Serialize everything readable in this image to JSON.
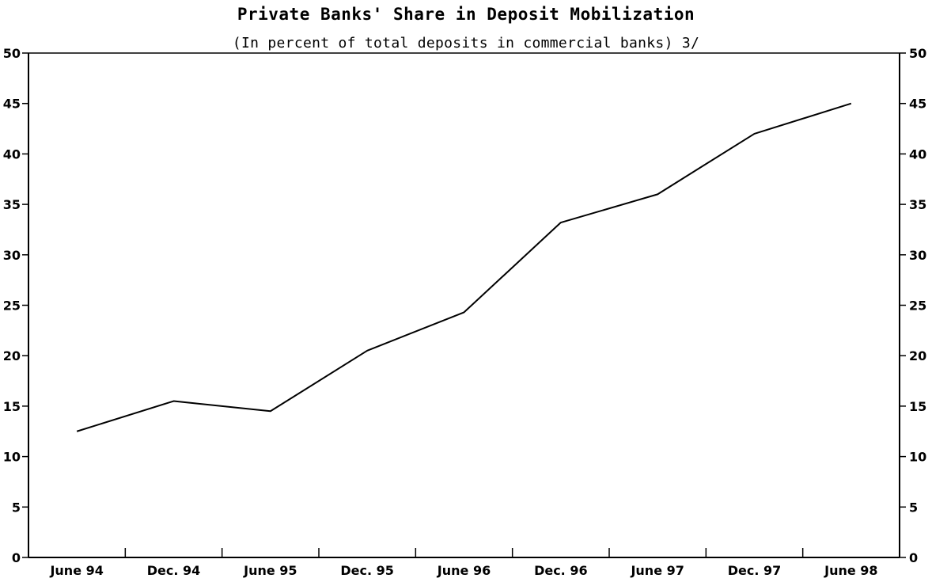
{
  "chart_data": {
    "type": "line",
    "title": "Private Banks' Share in Deposit Mobilization",
    "subtitle": "(In percent of total deposits in commercial banks) 3/",
    "xlabel": "",
    "ylabel": "",
    "categories": [
      "June 94",
      "Dec. 94",
      "June 95",
      "Dec. 95",
      "June 96",
      "Dec. 96",
      "June 97",
      "Dec. 97",
      "June 98"
    ],
    "series": [
      {
        "values": [
          12.5,
          15.5,
          14.5,
          20.5,
          24.3,
          33.2,
          36.0,
          42.0,
          45.0
        ]
      }
    ],
    "ylim": [
      0,
      50
    ],
    "yticks": [
      0,
      5,
      10,
      15,
      20,
      25,
      30,
      35,
      40,
      45,
      50
    ],
    "y_axis_right": true,
    "grid": false,
    "line_color": "#000000"
  }
}
